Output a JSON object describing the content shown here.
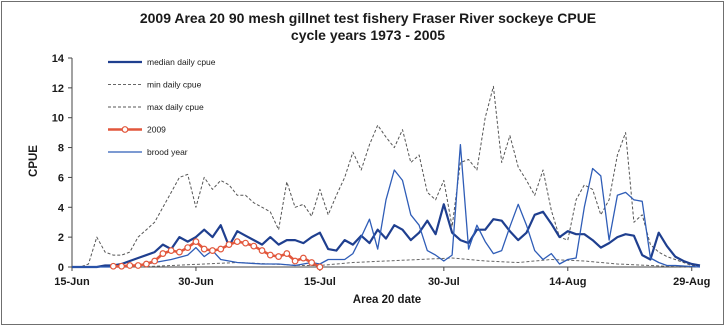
{
  "chart_data": {
    "type": "line",
    "title_line1": "2009 Area 20 90 mesh gillnet test fishery Fraser River sockeye CPUE",
    "title_line2": "cycle years 1973 - 2005",
    "xlabel": "Area 20 date",
    "ylabel": "CPUE",
    "ylim": [
      0,
      14
    ],
    "yticks": [
      0,
      2,
      4,
      6,
      8,
      10,
      12,
      14
    ],
    "x_start": "15-Jun",
    "x_range_days": [
      0,
      76
    ],
    "xticks": [
      {
        "label": "15-Jun",
        "day": 0
      },
      {
        "label": "30-Jun",
        "day": 15
      },
      {
        "label": "15-Jul",
        "day": 30
      },
      {
        "label": "30-Jul",
        "day": 45
      },
      {
        "label": "14-Aug",
        "day": 60
      },
      {
        "label": "29-Aug",
        "day": 75
      }
    ],
    "grid": false,
    "legend_position": "top-left",
    "series": [
      {
        "name": "median daily cpue",
        "color": "#1f3f8f",
        "style": "solid-thick",
        "x": [
          0,
          1,
          2,
          3,
          4,
          5,
          6,
          7,
          8,
          9,
          10,
          11,
          12,
          13,
          14,
          15,
          16,
          17,
          18,
          19,
          20,
          21,
          22,
          23,
          24,
          25,
          26,
          27,
          28,
          29,
          30,
          31,
          32,
          33,
          34,
          35,
          36,
          37,
          38,
          39,
          40,
          41,
          42,
          43,
          44,
          45,
          46,
          47,
          48,
          49,
          50,
          51,
          52,
          53,
          54,
          55,
          56,
          57,
          58,
          59,
          60,
          61,
          62,
          63,
          64,
          65,
          66,
          67,
          68,
          69,
          70,
          71,
          72,
          73,
          74,
          75,
          76
        ],
        "y": [
          0,
          0,
          0,
          0,
          0.1,
          0.1,
          0.2,
          0.4,
          0.6,
          0.8,
          1,
          1.5,
          1.2,
          2,
          1.7,
          2,
          2.5,
          2,
          2.8,
          1.4,
          2.4,
          2.1,
          1.8,
          1.5,
          2,
          1.5,
          1.8,
          1.8,
          1.6,
          2,
          2.3,
          1.2,
          1.1,
          1.8,
          1.5,
          2.1,
          1.6,
          2.5,
          1.9,
          2.8,
          2.5,
          1.8,
          2.3,
          3.1,
          2.2,
          4.2,
          2.3,
          1.8,
          1.6,
          2.5,
          2.5,
          3.2,
          3.1,
          2.4,
          1.8,
          2.3,
          3.5,
          3.7,
          2.9,
          2,
          2.4,
          2.2,
          2.2,
          1.8,
          1.3,
          1.6,
          2,
          2.2,
          2.1,
          0.8,
          0.5,
          2.3,
          1.4,
          0.7,
          0.4,
          0.2,
          0.1
        ]
      },
      {
        "name": "min daily cpue",
        "color": "#666666",
        "style": "dashed",
        "x": [
          0,
          4,
          8,
          12,
          16,
          20,
          24,
          28,
          30,
          34,
          38,
          42,
          46,
          50,
          54,
          58,
          62,
          66,
          70,
          74,
          76
        ],
        "y": [
          0,
          0,
          0,
          0.1,
          0.2,
          0.3,
          0.2,
          0.1,
          0.1,
          0.3,
          0.4,
          0.5,
          0.6,
          0.4,
          0.3,
          0.5,
          0.4,
          0.2,
          0.1,
          0,
          0
        ]
      },
      {
        "name": "max daily cpue",
        "color": "#555555",
        "style": "dashed",
        "x": [
          0,
          1,
          2,
          3,
          4,
          5,
          6,
          7,
          8,
          9,
          10,
          11,
          12,
          13,
          14,
          15,
          16,
          17,
          18,
          19,
          20,
          21,
          22,
          23,
          24,
          25,
          26,
          27,
          28,
          29,
          30,
          31,
          32,
          33,
          34,
          35,
          36,
          37,
          38,
          39,
          40,
          41,
          42,
          43,
          44,
          45,
          46,
          47,
          48,
          49,
          50,
          51,
          52,
          53,
          54,
          55,
          56,
          57,
          58,
          59,
          60,
          61,
          62,
          63,
          64,
          65,
          66,
          67,
          68,
          69,
          70,
          71,
          72,
          73,
          74,
          75,
          76
        ],
        "y": [
          0,
          0,
          0.2,
          2,
          1,
          0.8,
          0.8,
          1,
          2,
          2.5,
          3,
          4,
          5,
          6,
          6.2,
          4,
          6,
          5.2,
          5.8,
          5.5,
          4.8,
          4.8,
          4.3,
          4,
          3.7,
          2.5,
          5.7,
          4,
          4.2,
          3.4,
          5.2,
          3.5,
          4.8,
          6,
          7.7,
          6.5,
          8.2,
          9.5,
          8.7,
          8,
          9.2,
          7,
          7.5,
          5,
          4.5,
          5.8,
          2.7,
          7,
          7.2,
          6.5,
          10,
          12.1,
          7,
          8.8,
          6.7,
          5.8,
          4.8,
          6.5,
          3.8,
          2,
          1.8,
          4.5,
          5.5,
          5.2,
          3.5,
          4.5,
          7.5,
          9,
          3,
          3.5,
          1.5,
          1,
          0.7,
          0.5,
          0.3,
          0.1,
          0
        ]
      },
      {
        "name": "2009",
        "color": "#e2573c",
        "style": "circle-markers",
        "x": [
          5,
          6,
          7,
          8,
          9,
          10,
          11,
          12,
          13,
          14,
          15,
          16,
          17,
          18,
          19,
          20,
          21,
          22,
          23,
          24,
          25,
          26,
          27,
          28,
          29,
          30
        ],
        "y": [
          0.05,
          0.05,
          0.1,
          0.1,
          0.2,
          0.4,
          0.9,
          1.1,
          1,
          1.3,
          1.7,
          1.2,
          1.1,
          1.2,
          1.5,
          1.7,
          1.6,
          1.4,
          1.1,
          0.8,
          0.7,
          0.9,
          0.4,
          0.6,
          0.3,
          0
        ]
      },
      {
        "name": "brood year",
        "color": "#2f5db7",
        "style": "solid-thin",
        "x": [
          0,
          3,
          6,
          9,
          12,
          14,
          15,
          16,
          17,
          18,
          20,
          23,
          25,
          27,
          29,
          30,
          31,
          33,
          34,
          35,
          36,
          37,
          38,
          39,
          40,
          41,
          42,
          43,
          44,
          45,
          46,
          47,
          48,
          49,
          50,
          51,
          52,
          53,
          54,
          55,
          56,
          57,
          58,
          59,
          60,
          61,
          62,
          63,
          64,
          65,
          66,
          67,
          68,
          69,
          70,
          71,
          72,
          73,
          76
        ],
        "y": [
          0,
          0,
          0,
          0.2,
          0.5,
          0.8,
          1.3,
          0.7,
          1.1,
          0.5,
          0.3,
          0.2,
          0.2,
          0.1,
          0.3,
          0.2,
          0.5,
          0.5,
          0.9,
          2,
          3.2,
          1.2,
          4.5,
          6.5,
          5.8,
          3.5,
          2.8,
          1.1,
          0.8,
          0.4,
          0.8,
          8.2,
          1.2,
          2.8,
          1.7,
          0.9,
          1.1,
          2.7,
          4.2,
          2.8,
          1.1,
          0.5,
          0.9,
          0.2,
          0.5,
          0.6,
          4,
          6.6,
          6.1,
          1.8,
          4.8,
          5,
          4.5,
          4.4,
          0.6,
          0.3,
          0.1,
          0.1,
          0
        ]
      }
    ]
  }
}
